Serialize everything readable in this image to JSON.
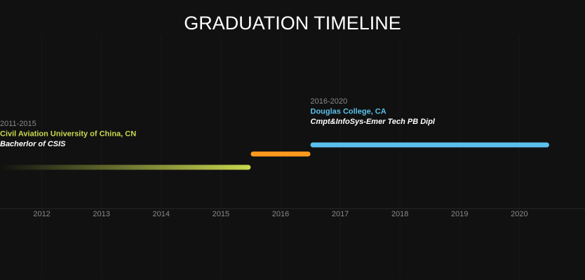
{
  "chart_data": {
    "type": "timeline",
    "title": "GRADUATION TIMELINE",
    "xlim": [
      2011.3,
      2021.1
    ],
    "x_ticks": [
      "2012",
      "2013",
      "2014",
      "2015",
      "2016",
      "2017",
      "2018",
      "2019",
      "2020"
    ],
    "grid": true,
    "segments": [
      {
        "start": 2011.0,
        "end": 2015.5,
        "row": 0,
        "color": "#c9d94e",
        "gradient_fade": true,
        "period": "2011-2015",
        "school": "Civil Aviation University of China, CN",
        "degree": "Bacherlor of CSIS"
      },
      {
        "start": 2015.5,
        "end": 2016.5,
        "row": 1,
        "color": "#ff9a1f",
        "gradient_fade": false,
        "period": "",
        "school": "",
        "degree": ""
      },
      {
        "start": 2016.5,
        "end": 2020.5,
        "row": 2,
        "color": "#5bc0eb",
        "gradient_fade": false,
        "period": "2016-2020",
        "school": "Douglas College, CA",
        "degree": "Cmpt&InfoSys-Emer Tech PB Dipl"
      }
    ]
  }
}
